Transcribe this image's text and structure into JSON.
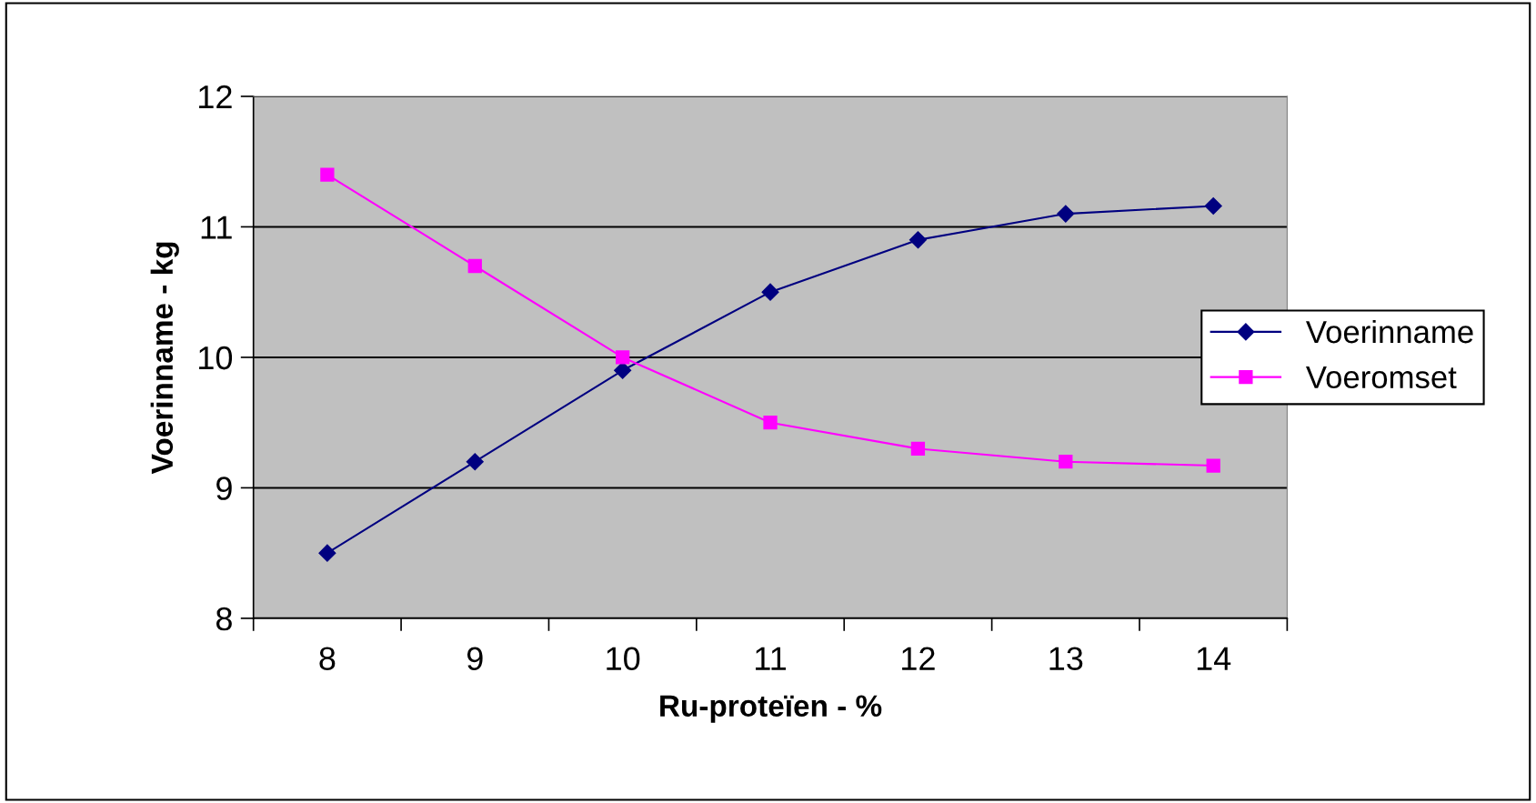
{
  "chart_data": {
    "type": "line",
    "xlabel": "Ru-proteïen - %",
    "ylabel": "Voerinname - kg",
    "categories": [
      "8",
      "9",
      "10",
      "11",
      "12",
      "13",
      "14"
    ],
    "series": [
      {
        "name": "Voerinname",
        "color": "#000080",
        "marker": "diamond",
        "values": [
          8.5,
          9.2,
          9.9,
          10.5,
          10.9,
          11.1,
          11.16
        ]
      },
      {
        "name": "Voeromset",
        "color": "#ff00ff",
        "marker": "square",
        "values": [
          11.4,
          10.7,
          10.0,
          9.5,
          9.3,
          9.2,
          9.17
        ]
      }
    ],
    "ylim": [
      8,
      12
    ],
    "yticks": [
      8,
      9,
      10,
      11,
      12
    ],
    "grid": "y",
    "legend": "right"
  }
}
